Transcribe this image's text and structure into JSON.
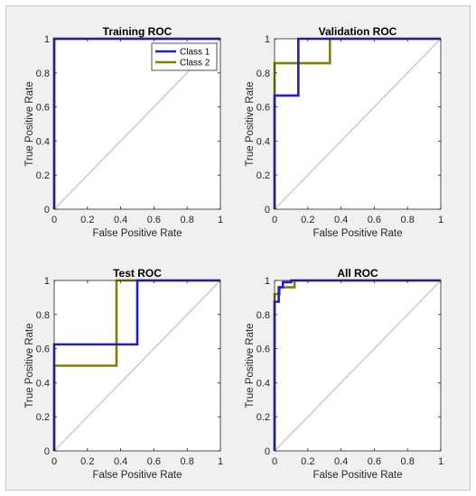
{
  "colors": {
    "figure_bg": "#f0f0f0",
    "axes_bg": "#ffffff",
    "axis_line": "#262626",
    "class1": "#1f1fcc",
    "class2": "#808000",
    "diagonal": "#cccccc"
  },
  "chart_data": [
    {
      "type": "line",
      "title": "Training ROC",
      "xlabel": "False Positive Rate",
      "ylabel": "True Positive Rate",
      "xlim": [
        0,
        1
      ],
      "ylim": [
        0,
        1
      ],
      "xticks": [
        "0",
        "0.2",
        "0.4",
        "0.6",
        "0.8",
        "1"
      ],
      "yticks": [
        "0",
        "0.2",
        "0.4",
        "0.6",
        "0.8",
        "1"
      ],
      "legend": {
        "placement": "top-right",
        "entries": [
          "Class 1",
          "Class 2"
        ]
      },
      "diagonal": true,
      "series": [
        {
          "name": "Class 1",
          "color": "#1f1fcc",
          "points": [
            [
              0,
              0
            ],
            [
              0,
              1
            ],
            [
              1,
              1
            ]
          ]
        },
        {
          "name": "Class 2",
          "color": "#808000",
          "points": [
            [
              0,
              0
            ],
            [
              0,
              1
            ],
            [
              1,
              1
            ]
          ]
        }
      ]
    },
    {
      "type": "line",
      "title": "Validation ROC",
      "xlabel": "False Positive Rate",
      "ylabel": "True Positive Rate",
      "xlim": [
        0,
        1
      ],
      "ylim": [
        0,
        1
      ],
      "xticks": [
        "0",
        "0.2",
        "0.4",
        "0.6",
        "0.8",
        "1"
      ],
      "yticks": [
        "0",
        "0.2",
        "0.4",
        "0.6",
        "0.8",
        "1"
      ],
      "diagonal": true,
      "series": [
        {
          "name": "Class 1",
          "color": "#1f1fcc",
          "points": [
            [
              0,
              0
            ],
            [
              0,
              0.667
            ],
            [
              0.143,
              0.667
            ],
            [
              0.143,
              1
            ],
            [
              1,
              1
            ]
          ]
        },
        {
          "name": "Class 2",
          "color": "#808000",
          "points": [
            [
              0,
              0
            ],
            [
              0,
              0.857
            ],
            [
              0.333,
              0.857
            ],
            [
              0.333,
              1
            ],
            [
              1,
              1
            ]
          ]
        }
      ]
    },
    {
      "type": "line",
      "title": "Test ROC",
      "xlabel": "False Positive Rate",
      "ylabel": "True Positive Rate",
      "xlim": [
        0,
        1
      ],
      "ylim": [
        0,
        1
      ],
      "xticks": [
        "0",
        "0.2",
        "0.4",
        "0.6",
        "0.8",
        "1"
      ],
      "yticks": [
        "0",
        "0.2",
        "0.4",
        "0.6",
        "0.8",
        "1"
      ],
      "diagonal": true,
      "series": [
        {
          "name": "Class 1",
          "color": "#1f1fcc",
          "points": [
            [
              0,
              0
            ],
            [
              0,
              0.625
            ],
            [
              0.5,
              0.625
            ],
            [
              0.5,
              1
            ],
            [
              1,
              1
            ]
          ]
        },
        {
          "name": "Class 2",
          "color": "#808000",
          "points": [
            [
              0,
              0
            ],
            [
              0,
              0.5
            ],
            [
              0.375,
              0.5
            ],
            [
              0.375,
              1
            ],
            [
              1,
              1
            ]
          ]
        }
      ]
    },
    {
      "type": "line",
      "title": "All ROC",
      "xlabel": "False Positive Rate",
      "ylabel": "True Positive Rate",
      "xlim": [
        0,
        1
      ],
      "ylim": [
        0,
        1
      ],
      "xticks": [
        "0",
        "0.2",
        "0.4",
        "0.6",
        "0.8",
        "1"
      ],
      "yticks": [
        "0",
        "0.2",
        "0.4",
        "0.6",
        "0.8",
        "1"
      ],
      "diagonal": true,
      "series": [
        {
          "name": "Class 1",
          "color": "#1f1fcc",
          "points": [
            [
              0,
              0
            ],
            [
              0,
              0.875
            ],
            [
              0.025,
              0.875
            ],
            [
              0.025,
              0.96
            ],
            [
              0.05,
              0.96
            ],
            [
              0.05,
              0.99
            ],
            [
              0.1,
              0.99
            ],
            [
              0.1,
              1
            ],
            [
              1,
              1
            ]
          ]
        },
        {
          "name": "Class 2",
          "color": "#808000",
          "points": [
            [
              0,
              0
            ],
            [
              0,
              0.92
            ],
            [
              0.03,
              0.92
            ],
            [
              0.03,
              0.96
            ],
            [
              0.12,
              0.96
            ],
            [
              0.12,
              1
            ],
            [
              1,
              1
            ]
          ]
        }
      ]
    }
  ]
}
